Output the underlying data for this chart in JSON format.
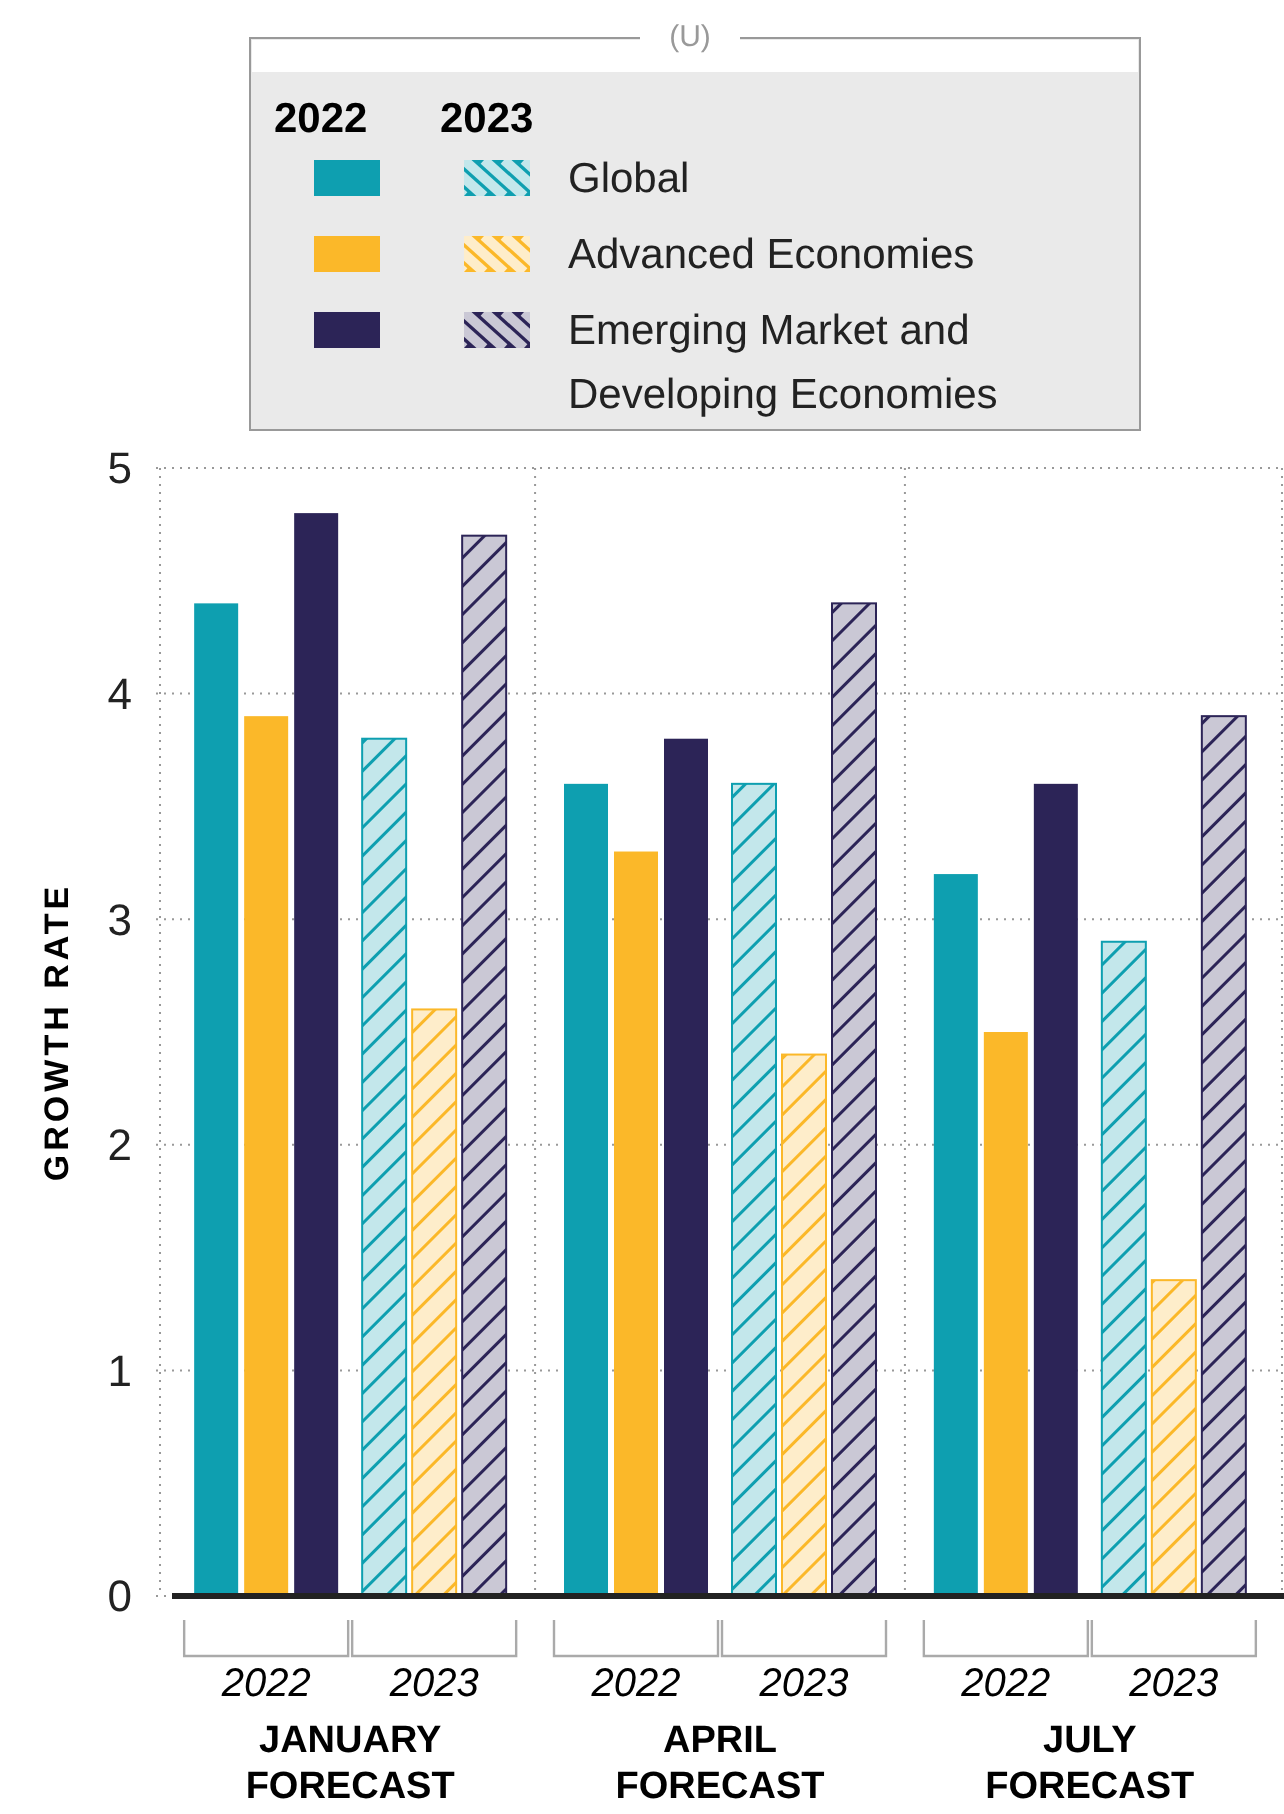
{
  "chart_data": {
    "type": "bar",
    "ylabel": "GROWTH RATE",
    "categories": [
      "JANUARY FORECAST",
      "APRIL FORECAST",
      "JULY FORECAST"
    ],
    "series": [
      {
        "name": "Global",
        "color": "#0e9fb0",
        "values": [
          4.4,
          3.6,
          3.2
        ]
      },
      {
        "name": "Advanced Economies",
        "color": "#fbb829",
        "values": [
          3.9,
          3.3,
          2.5
        ]
      },
      {
        "name": "Emerging Market and Developing Economies",
        "color": "#2c2457",
        "values": [
          4.8,
          3.8,
          3.6
        ]
      },
      {
        "color": "#0e9fb0",
        "values": [
          3.8,
          3.6,
          2.9
        ]
      },
      {
        "color": "#fbb829",
        "values": [
          2.6,
          2.4,
          1.4
        ]
      },
      {
        "color": "#2c2457",
        "values": [
          4.7,
          4.4,
          3.9
        ]
      }
    ],
    "annotations": [
      "(U)",
      "2022",
      "2023"
    ],
    "ylim": [
      0,
      5
    ],
    "yticks": [
      0,
      1,
      2,
      3,
      4,
      5
    ],
    "grid": true,
    "legend": "top"
  }
}
